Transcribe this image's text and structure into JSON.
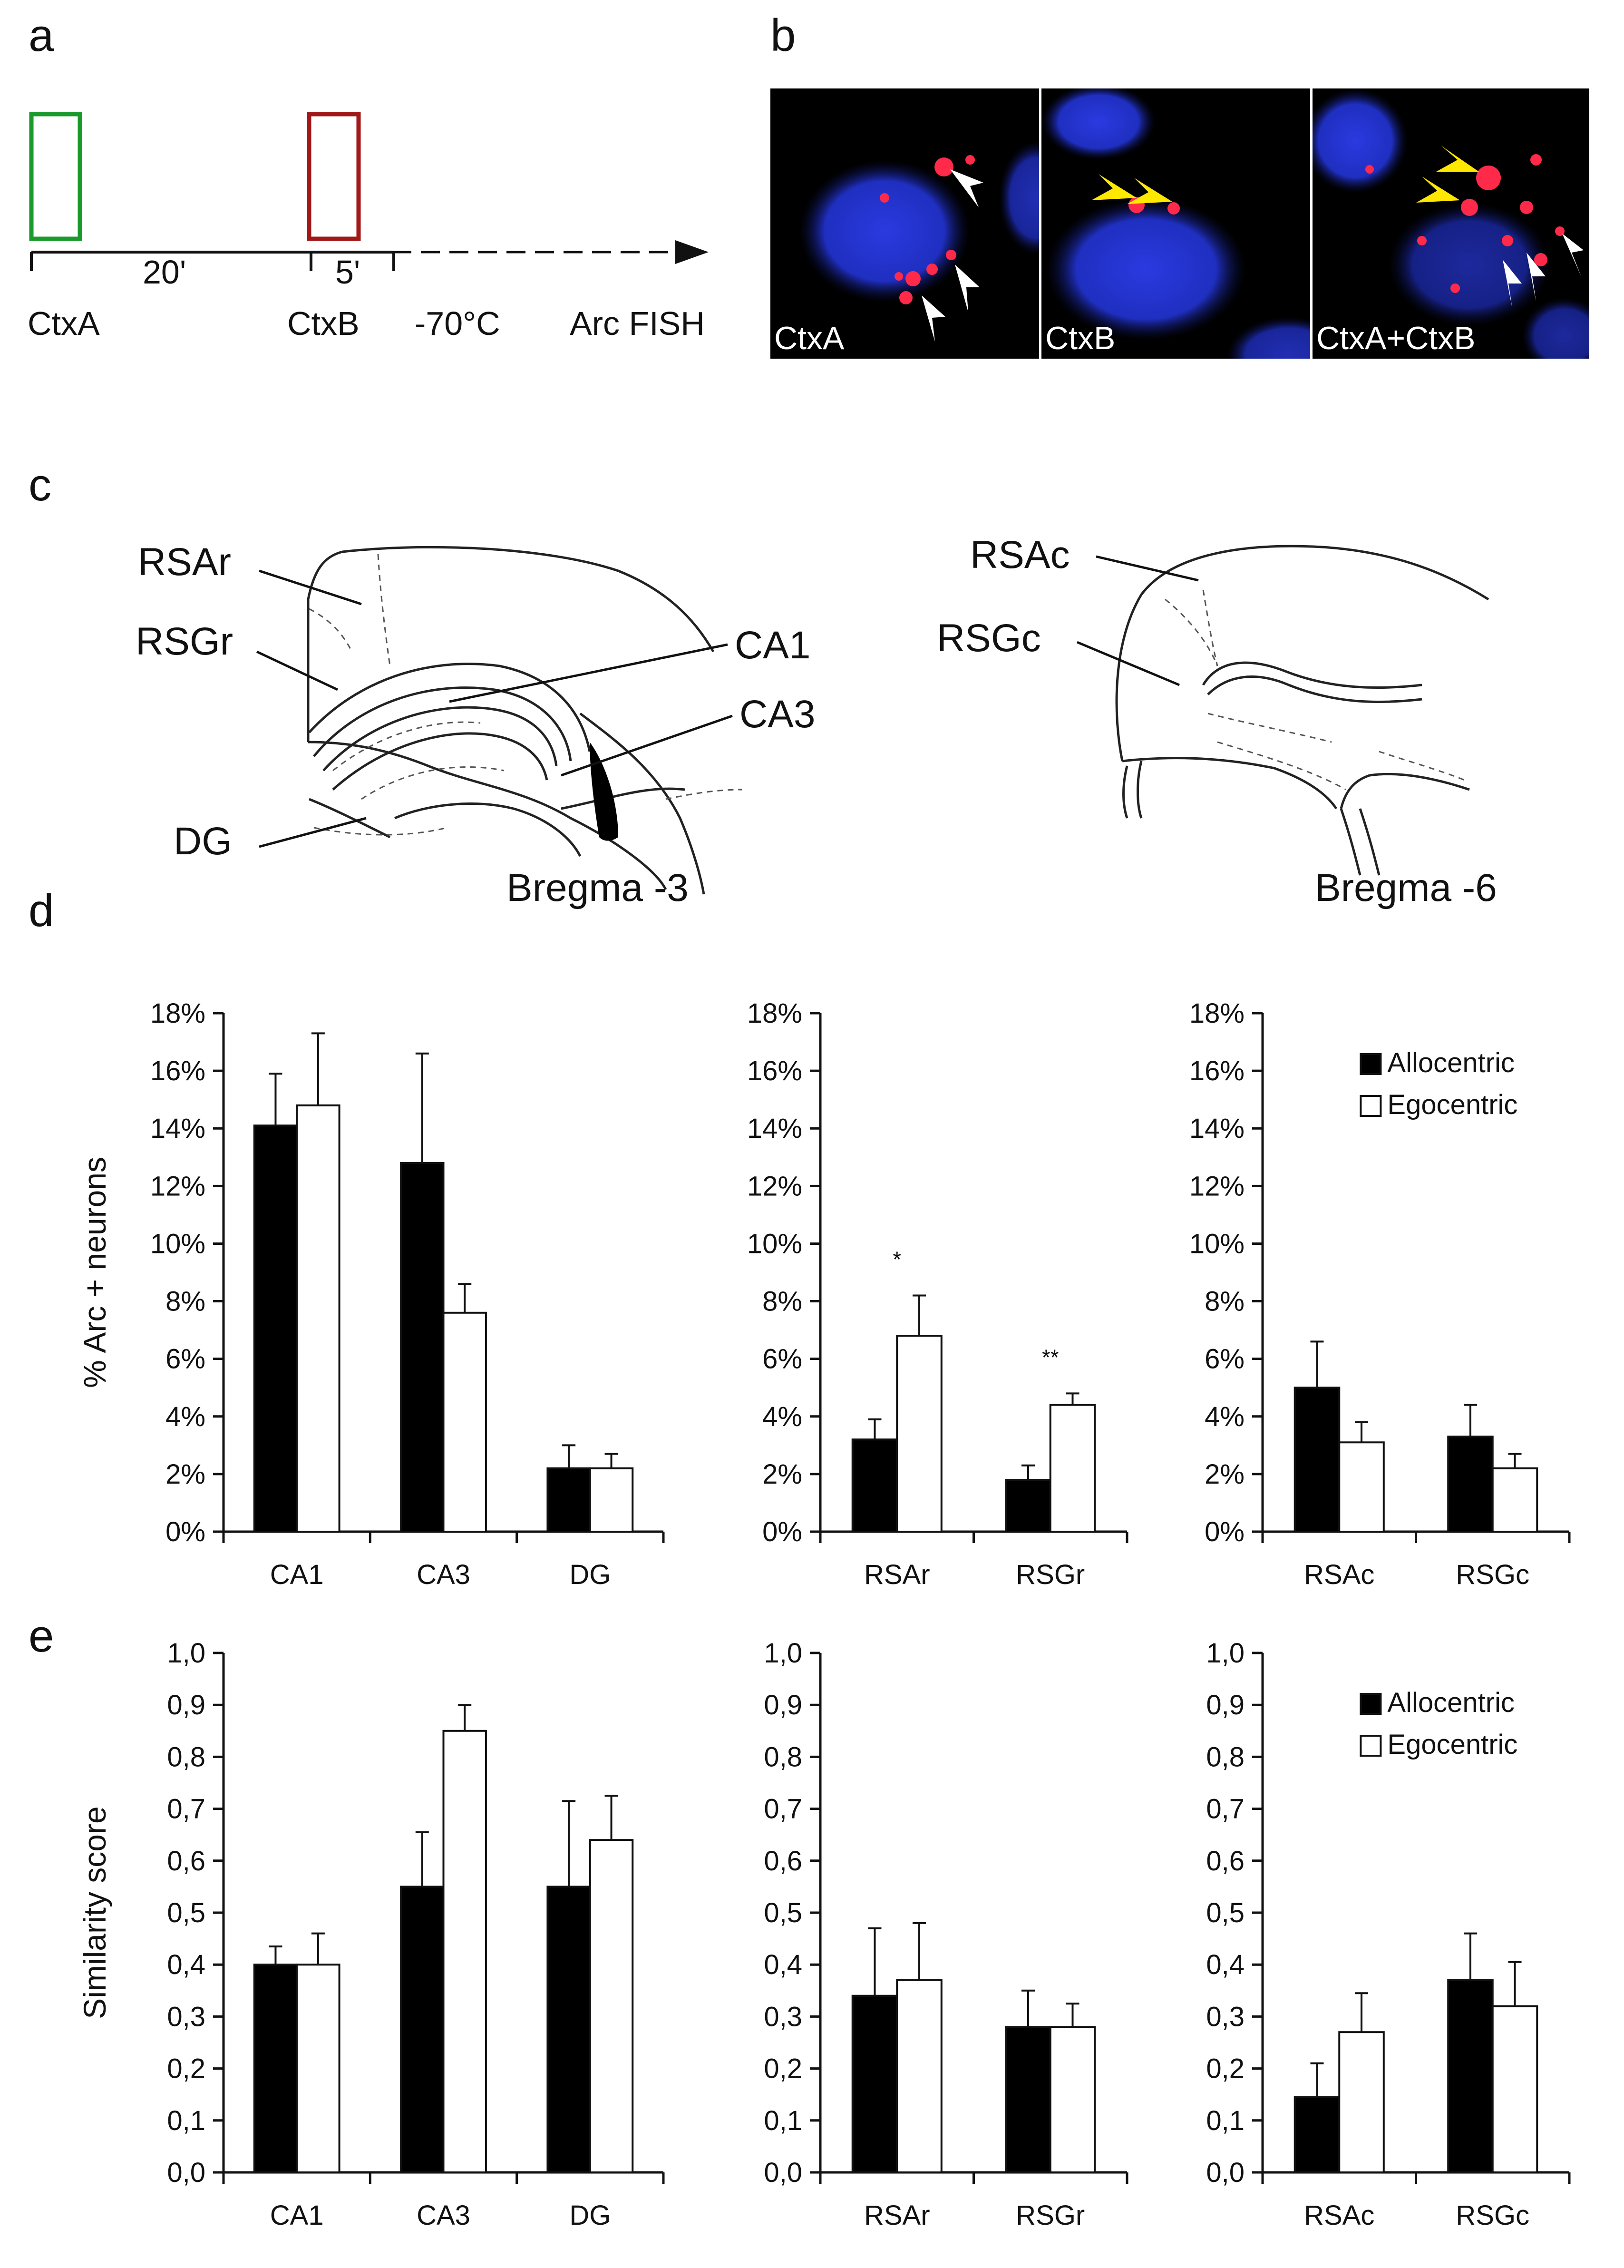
{
  "panels": {
    "a": {
      "letter": "a",
      "durations": {
        "first": "20'",
        "second": "5'"
      },
      "labels": {
        "ctxA": "CtxA",
        "ctxB": "CtxB",
        "temp": "-70°C",
        "fish": "Arc FISH"
      },
      "colors": {
        "ctxA_box": "#1a9a2a",
        "ctxB_box": "#a01818"
      }
    },
    "b": {
      "letter": "b",
      "images": [
        {
          "label": "CtxA"
        },
        {
          "label": "CtxB"
        },
        {
          "label": "CtxA+CtxB"
        }
      ],
      "colors": {
        "nucleus": "#1f2fd0",
        "arc_signal": "#ff2a4a",
        "arrow_white": "#ffffff",
        "arrow_yellow": "#ffe800"
      }
    },
    "c": {
      "letter": "c",
      "left": {
        "labels": {
          "rsar": "RSAr",
          "rsgr": "RSGr",
          "ca1": "CA1",
          "ca3": "CA3",
          "dg": "DG"
        },
        "bregma": "Bregma -3"
      },
      "right": {
        "labels": {
          "rsac": "RSAc",
          "rsgc": "RSGc"
        },
        "bregma": "Bregma -6"
      }
    },
    "d": {
      "letter": "d"
    },
    "e": {
      "letter": "e"
    }
  },
  "chart_data": [
    {
      "id": "d1",
      "panel": "d",
      "type": "bar",
      "ylabel": "% Arc + neurons",
      "ylim": [
        0,
        18
      ],
      "yticks": [
        "0%",
        "2%",
        "4%",
        "6%",
        "8%",
        "10%",
        "12%",
        "14%",
        "16%",
        "18%"
      ],
      "categories": [
        "CA1",
        "CA3",
        "DG"
      ],
      "series": [
        {
          "name": "Allocentric",
          "values": [
            14.1,
            12.8,
            2.2
          ],
          "errors": [
            1.8,
            3.8,
            0.8
          ]
        },
        {
          "name": "Egocentric",
          "values": [
            14.8,
            7.6,
            2.2
          ],
          "errors": [
            2.5,
            1.0,
            0.5
          ]
        }
      ],
      "annotations": []
    },
    {
      "id": "d2",
      "panel": "d",
      "type": "bar",
      "ylim": [
        0,
        18
      ],
      "yticks": [
        "0%",
        "2%",
        "4%",
        "6%",
        "8%",
        "10%",
        "12%",
        "14%",
        "16%",
        "18%"
      ],
      "categories": [
        "RSAr",
        "RSGr"
      ],
      "series": [
        {
          "name": "Allocentric",
          "values": [
            3.2,
            1.8
          ],
          "errors": [
            0.7,
            0.5
          ]
        },
        {
          "name": "Egocentric",
          "values": [
            6.8,
            4.4
          ],
          "errors": [
            1.4,
            0.4
          ]
        }
      ],
      "annotations": [
        {
          "category": "RSAr",
          "text": "*"
        },
        {
          "category": "RSGr",
          "text": "**"
        }
      ]
    },
    {
      "id": "d3",
      "panel": "d",
      "type": "bar",
      "ylim": [
        0,
        18
      ],
      "yticks": [
        "0%",
        "2%",
        "4%",
        "6%",
        "8%",
        "10%",
        "12%",
        "14%",
        "16%",
        "18%"
      ],
      "categories": [
        "RSAc",
        "RSGc"
      ],
      "series": [
        {
          "name": "Allocentric",
          "values": [
            5.0,
            3.3
          ],
          "errors": [
            1.6,
            1.1
          ]
        },
        {
          "name": "Egocentric",
          "values": [
            3.1,
            2.2
          ],
          "errors": [
            0.7,
            0.5
          ]
        }
      ],
      "legend": {
        "placement": "top-right",
        "entries": [
          "Allocentric",
          "Egocentric"
        ]
      },
      "annotations": []
    },
    {
      "id": "e1",
      "panel": "e",
      "type": "bar",
      "ylabel": "Similarity score",
      "ylim": [
        0,
        1.0
      ],
      "yticks": [
        "0,0",
        "0,1",
        "0,2",
        "0,3",
        "0,4",
        "0,5",
        "0,6",
        "0,7",
        "0,8",
        "0,9",
        "1,0"
      ],
      "categories": [
        "CA1",
        "CA3",
        "DG"
      ],
      "series": [
        {
          "name": "Allocentric",
          "values": [
            0.4,
            0.55,
            0.55
          ],
          "errors": [
            0.035,
            0.105,
            0.165
          ]
        },
        {
          "name": "Egocentric",
          "values": [
            0.4,
            0.85,
            0.64
          ],
          "errors": [
            0.06,
            0.05,
            0.085
          ]
        }
      ],
      "annotations": []
    },
    {
      "id": "e2",
      "panel": "e",
      "type": "bar",
      "ylim": [
        0,
        1.0
      ],
      "yticks": [
        "0,0",
        "0,1",
        "0,2",
        "0,3",
        "0,4",
        "0,5",
        "0,6",
        "0,7",
        "0,8",
        "0,9",
        "1,0"
      ],
      "categories": [
        "RSAr",
        "RSGr"
      ],
      "series": [
        {
          "name": "Allocentric",
          "values": [
            0.34,
            0.28
          ],
          "errors": [
            0.13,
            0.07
          ]
        },
        {
          "name": "Egocentric",
          "values": [
            0.37,
            0.28
          ],
          "errors": [
            0.11,
            0.045
          ]
        }
      ],
      "annotations": []
    },
    {
      "id": "e3",
      "panel": "e",
      "type": "bar",
      "ylim": [
        0,
        1.0
      ],
      "yticks": [
        "0,0",
        "0,1",
        "0,2",
        "0,3",
        "0,4",
        "0,5",
        "0,6",
        "0,7",
        "0,8",
        "0,9",
        "1,0"
      ],
      "categories": [
        "RSAc",
        "RSGc"
      ],
      "series": [
        {
          "name": "Allocentric",
          "values": [
            0.145,
            0.37
          ],
          "errors": [
            0.065,
            0.09
          ]
        },
        {
          "name": "Egocentric",
          "values": [
            0.27,
            0.32
          ],
          "errors": [
            0.075,
            0.085
          ]
        }
      ],
      "legend": {
        "placement": "top-right",
        "entries": [
          "Allocentric",
          "Egocentric"
        ]
      },
      "annotations": []
    }
  ]
}
